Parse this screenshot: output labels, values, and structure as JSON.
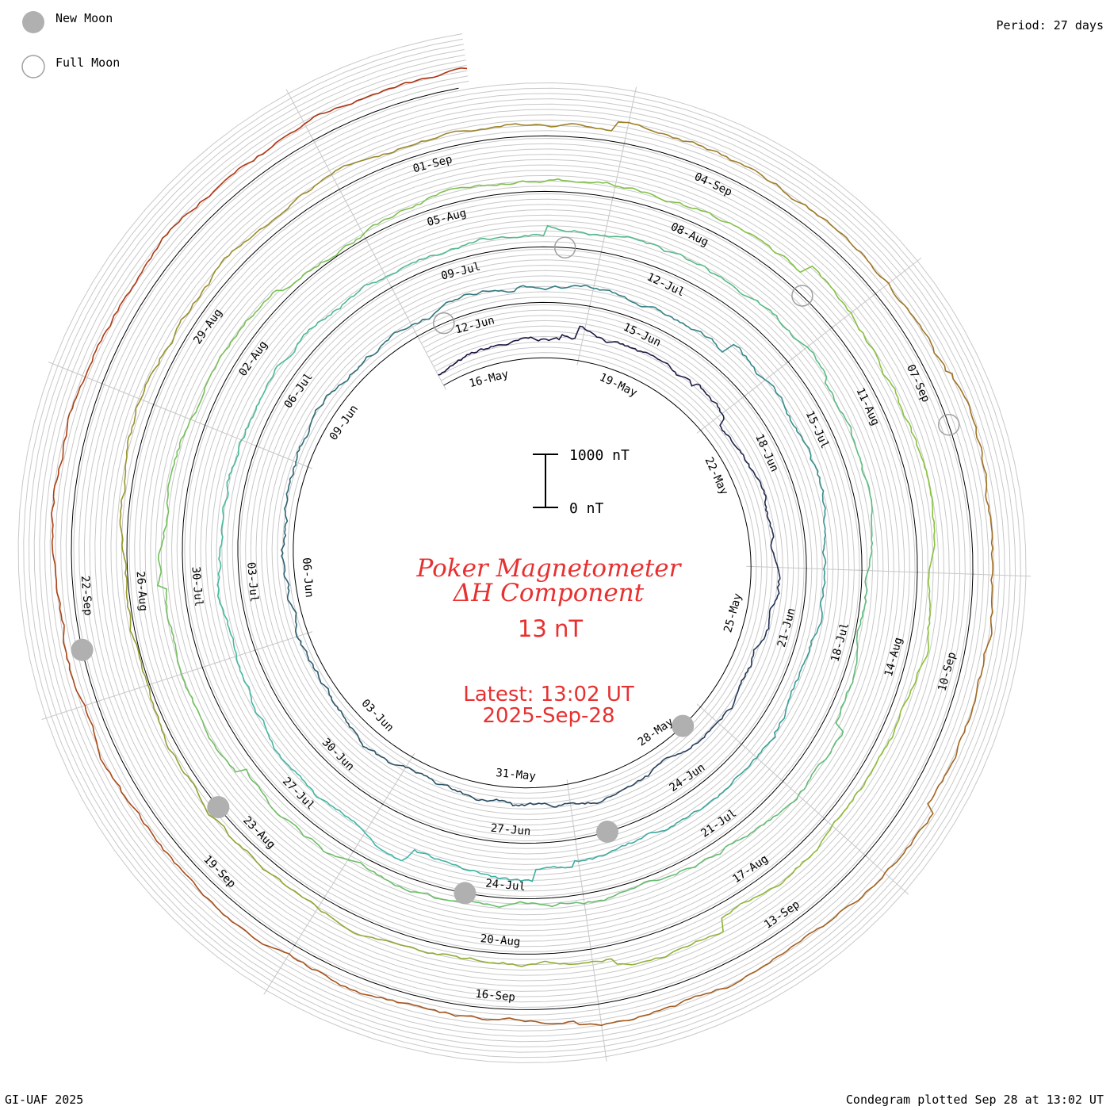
{
  "header": {
    "period_label": "Period: 27 days",
    "footer_left": "GI-UAF 2025",
    "footer_right": "Condegram plotted Sep 28 at 13:02 UT"
  },
  "legend": {
    "new_moon": "New Moon",
    "full_moon": "Full Moon"
  },
  "chart_data": {
    "type": "condegram",
    "title_line1": "Poker Magnetometer",
    "title_line2": "ΔH Component",
    "current_value": "13 nT",
    "latest_time": "Latest: 13:02 UT",
    "latest_date": "2025-Sep-28",
    "scale": {
      "top_label": "1000 nT",
      "bottom_label": "0 nT",
      "span_nT": 1000
    },
    "period_days": 27,
    "start_date": "2025-05-15",
    "end_date": "2025-09-28",
    "colors": {
      "spiral_start": "#1a0a3a",
      "spiral_mid": "#3fb8a8",
      "spiral_late": "#8cc23a",
      "spiral_end": "#b03010",
      "grid": "#c8c8c8",
      "baseline": "#000000",
      "title": "#e83030",
      "moon_fill": "#b0b0b0"
    },
    "date_labels": [
      "16-May",
      "19-May",
      "22-May",
      "25-May",
      "28-May",
      "31-May",
      "03-Jun",
      "06-Jun",
      "09-Jun",
      "12-Jun",
      "15-Jun",
      "18-Jun",
      "21-Jun",
      "24-Jun",
      "27-Jun",
      "30-Jun",
      "03-Jul",
      "06-Jul",
      "09-Jul",
      "12-Jul",
      "15-Jul",
      "18-Jul",
      "21-Jul",
      "24-Jul",
      "27-Jul",
      "30-Jul",
      "02-Aug",
      "05-Aug",
      "08-Aug",
      "11-Aug",
      "14-Aug",
      "17-Aug",
      "20-Aug",
      "23-Aug",
      "26-Aug",
      "29-Aug",
      "01-Sep",
      "04-Sep",
      "07-Sep",
      "10-Sep",
      "13-Sep",
      "16-Sep",
      "19-Sep",
      "22-Sep"
    ],
    "new_moons": [
      "2025-05-27",
      "2025-06-25",
      "2025-07-24",
      "2025-08-23",
      "2025-09-21"
    ],
    "full_moons": [
      "2025-06-11",
      "2025-07-10",
      "2025-08-09",
      "2025-09-07"
    ]
  }
}
